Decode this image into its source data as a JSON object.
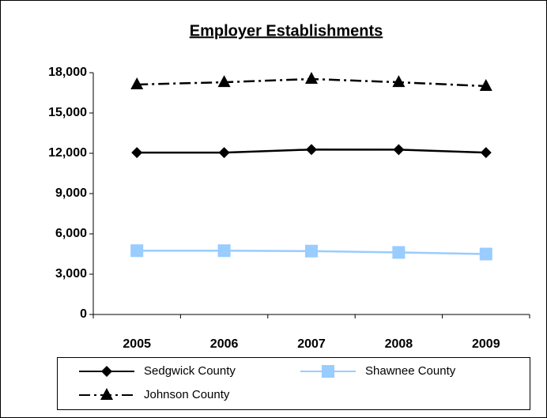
{
  "chart_data": {
    "type": "line",
    "title": "Employer Establishments",
    "categories": [
      "2005",
      "2006",
      "2007",
      "2008",
      "2009"
    ],
    "series": [
      {
        "name": "Sedgwick County",
        "color": "#000000",
        "marker": "diamond",
        "linestyle": "solid",
        "values": [
          12050,
          12050,
          12280,
          12270,
          12050
        ]
      },
      {
        "name": "Shawnee County",
        "color": "#99ccff",
        "marker": "square",
        "linestyle": "solid",
        "values": [
          4750,
          4750,
          4720,
          4620,
          4500
        ]
      },
      {
        "name": "Johnson County",
        "color": "#000000",
        "marker": "triangle",
        "linestyle": "dashdot",
        "values": [
          17120,
          17290,
          17530,
          17290,
          17000
        ]
      }
    ],
    "ylim": [
      0,
      18000
    ],
    "yticks": [
      0,
      {
        "value": 3000,
        "label": "3,000"
      },
      {
        "value": 6000,
        "label": "6,000"
      },
      {
        "value": 9000,
        "label": "9,000"
      },
      {
        "value": 12000,
        "label": "12,000"
      },
      {
        "value": 15000,
        "label": "15,000"
      },
      {
        "value": 18000,
        "label": "18,000"
      }
    ],
    "grid": false,
    "legend": "bottom"
  }
}
